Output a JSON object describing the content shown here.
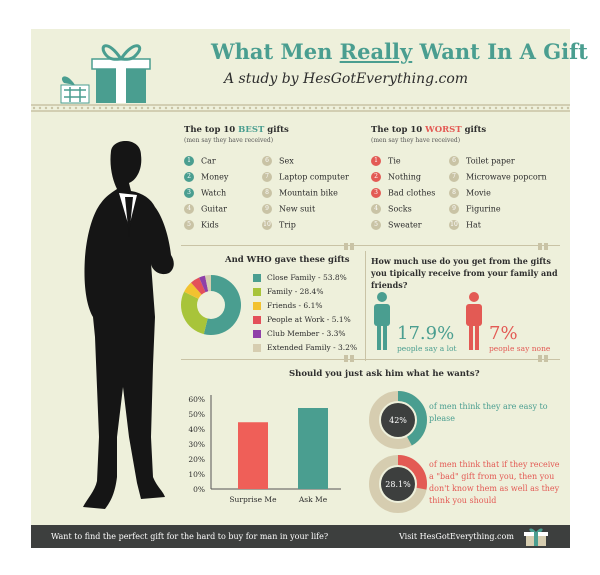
{
  "header": {
    "title_prefix": "What Men ",
    "title_emph": "Really",
    "title_suffix": " Want In A Gift",
    "subtitle": "A study by HesGotEverything.com"
  },
  "best_gifts": {
    "title_prefix": "The top 10 ",
    "title_emph": "BEST",
    "title_suffix": " gifts",
    "note": "(men say they have received)",
    "items": [
      {
        "num": "1",
        "label": "Car"
      },
      {
        "num": "2",
        "label": "Money"
      },
      {
        "num": "3",
        "label": "Watch"
      },
      {
        "num": "4",
        "label": "Guitar"
      },
      {
        "num": "5",
        "label": "Kids"
      },
      {
        "num": "6",
        "label": "Sex"
      },
      {
        "num": "7",
        "label": "Laptop computer"
      },
      {
        "num": "8",
        "label": "Mountain bike"
      },
      {
        "num": "9",
        "label": "New suit"
      },
      {
        "num": "10",
        "label": "Trip"
      }
    ]
  },
  "worst_gifts": {
    "title_prefix": "The top 10 ",
    "title_emph": "WORST",
    "title_suffix": " gifts",
    "note": "(men say they have received)",
    "items": [
      {
        "num": "1",
        "label": "Tie"
      },
      {
        "num": "2",
        "label": "Nothing"
      },
      {
        "num": "3",
        "label": "Bad clothes"
      },
      {
        "num": "4",
        "label": "Socks"
      },
      {
        "num": "5",
        "label": "Sweater"
      },
      {
        "num": "6",
        "label": "Toilet paper"
      },
      {
        "num": "7",
        "label": "Microwave popcorn"
      },
      {
        "num": "8",
        "label": "Movie"
      },
      {
        "num": "9",
        "label": "Figurine"
      },
      {
        "num": "10",
        "label": "Hat"
      }
    ]
  },
  "who_gave": {
    "title": "And WHO gave these gifts",
    "entries": [
      {
        "label": "Close Family - 53.8%",
        "value": 53.8,
        "color": "#4a9e90"
      },
      {
        "label": "Family - 28.4%",
        "value": 28.4,
        "color": "#a8c43a"
      },
      {
        "label": "Friends - 6.1%",
        "value": 6.1,
        "color": "#f2c230"
      },
      {
        "label": "People at Work - 5.1%",
        "value": 5.1,
        "color": "#e3505a"
      },
      {
        "label": "Club Member - 3.3%",
        "value": 3.3,
        "color": "#8f3fa8"
      },
      {
        "label": "Extended Family - 3.2%",
        "value": 3.2,
        "color": "#d6cdb0"
      }
    ]
  },
  "usage": {
    "question": "How much use do you get from the gifts you tipically receive from your family and friends?",
    "lot_value": "17.9%",
    "lot_caption": "people say a lot",
    "none_value": "7%",
    "none_caption": "people say none"
  },
  "ask": {
    "title": "Should you just ask him what he wants?",
    "easy_pct": "42%",
    "easy_text": "of men think they are easy to please",
    "bad_pct": "28.1%",
    "bad_text": "of men think that if they receive a \"bad\" gift from you, then you don't know them as well as they think you should"
  },
  "chart_data": {
    "type": "bar",
    "categories": [
      "Surprise Me",
      "Ask Me"
    ],
    "values": [
      44.5,
      54
    ],
    "colors": [
      "#ef5f58",
      "#4a9e90"
    ],
    "yticks": [
      "0%",
      "10%",
      "20%",
      "30%",
      "40%",
      "50%",
      "60%"
    ],
    "ylim": [
      0,
      60
    ]
  },
  "footer": {
    "left": "Want to find the perfect gift for the hard to buy for man in your life?",
    "right": "Visit HesGotEverything.com"
  },
  "colors": {
    "teal": "#4a9e90",
    "red": "#e35a54",
    "background": "#eef0db",
    "dark": "#3d3f3e"
  }
}
